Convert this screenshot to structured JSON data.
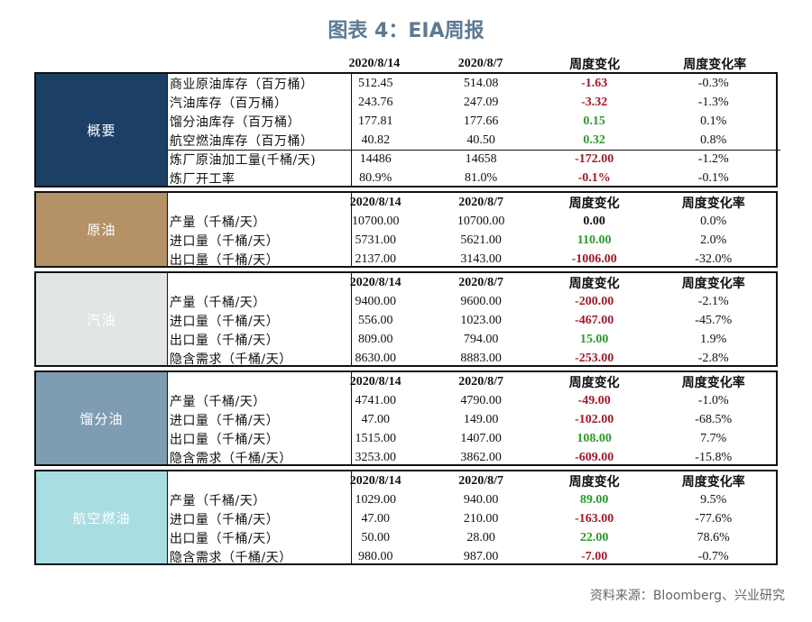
{
  "title": "图表 4：EIA周报",
  "header": {
    "d1": "2020/8/14",
    "d2": "2020/8/7",
    "chg": "周度变化",
    "pct": "周度变化率"
  },
  "colors": {
    "overview": "#1c3f66",
    "crude": "#b49265",
    "gasoline": "#e2e5e6",
    "distillate": "#7f9db2",
    "jet": "#a8dde1"
  },
  "sections": [
    {
      "name": "概要",
      "rows": [
        {
          "item": "商业原油库存（百万桶）",
          "v1": "512.45",
          "v2": "514.08",
          "chg": "-1.63",
          "pct": "-0.3%",
          "tone": "neg"
        },
        {
          "item": "汽油库存（百万桶）",
          "v1": "243.76",
          "v2": "247.09",
          "chg": "-3.32",
          "pct": "-1.3%",
          "tone": "neg"
        },
        {
          "item": "馏分油库存（百万桶）",
          "v1": "177.81",
          "v2": "177.66",
          "chg": "0.15",
          "pct": "0.1%",
          "tone": "pos"
        },
        {
          "item": "航空燃油库存（百万桶）",
          "v1": "40.82",
          "v2": "40.50",
          "chg": "0.32",
          "pct": "0.8%",
          "tone": "pos"
        },
        {
          "item": "炼厂原油加工量(千桶/天)",
          "v1": "14486",
          "v2": "14658",
          "chg": "-172.00",
          "pct": "-1.2%",
          "tone": "neg"
        },
        {
          "item": "炼厂开工率",
          "v1": "80.9%",
          "v2": "81.0%",
          "chg": "-0.1%",
          "pct": "-0.1%",
          "tone": "neg"
        }
      ]
    },
    {
      "name": "原油",
      "rows": [
        {
          "item": "产量（千桶/天）",
          "v1": "10700.00",
          "v2": "10700.00",
          "chg": "0.00",
          "pct": "0.0%",
          "tone": "zero"
        },
        {
          "item": "进口量（千桶/天）",
          "v1": "5731.00",
          "v2": "5621.00",
          "chg": "110.00",
          "pct": "2.0%",
          "tone": "pos"
        },
        {
          "item": "出口量（千桶/天）",
          "v1": "2137.00",
          "v2": "3143.00",
          "chg": "-1006.00",
          "pct": "-32.0%",
          "tone": "neg"
        }
      ]
    },
    {
      "name": "汽油",
      "rows": [
        {
          "item": "产量（千桶/天）",
          "v1": "9400.00",
          "v2": "9600.00",
          "chg": "-200.00",
          "pct": "-2.1%",
          "tone": "neg"
        },
        {
          "item": "进口量（千桶/天）",
          "v1": "556.00",
          "v2": "1023.00",
          "chg": "-467.00",
          "pct": "-45.7%",
          "tone": "neg"
        },
        {
          "item": "出口量（千桶/天）",
          "v1": "809.00",
          "v2": "794.00",
          "chg": "15.00",
          "pct": "1.9%",
          "tone": "pos"
        },
        {
          "item": "隐含需求（千桶/天）",
          "v1": "8630.00",
          "v2": "8883.00",
          "chg": "-253.00",
          "pct": "-2.8%",
          "tone": "neg"
        }
      ]
    },
    {
      "name": "馏分油",
      "rows": [
        {
          "item": "产量（千桶/天）",
          "v1": "4741.00",
          "v2": "4790.00",
          "chg": "-49.00",
          "pct": "-1.0%",
          "tone": "neg"
        },
        {
          "item": "进口量（千桶/天）",
          "v1": "47.00",
          "v2": "149.00",
          "chg": "-102.00",
          "pct": "-68.5%",
          "tone": "neg"
        },
        {
          "item": "出口量（千桶/天）",
          "v1": "1515.00",
          "v2": "1407.00",
          "chg": "108.00",
          "pct": "7.7%",
          "tone": "pos"
        },
        {
          "item": "隐含需求（千桶/天）",
          "v1": "3253.00",
          "v2": "3862.00",
          "chg": "-609.00",
          "pct": "-15.8%",
          "tone": "neg"
        }
      ]
    },
    {
      "name": "航空燃油",
      "rows": [
        {
          "item": "产量（千桶/天）",
          "v1": "1029.00",
          "v2": "940.00",
          "chg": "89.00",
          "pct": "9.5%",
          "tone": "pos"
        },
        {
          "item": "进口量（千桶/天）",
          "v1": "47.00",
          "v2": "210.00",
          "chg": "-163.00",
          "pct": "-77.6%",
          "tone": "neg"
        },
        {
          "item": "出口量（千桶/天）",
          "v1": "50.00",
          "v2": "28.00",
          "chg": "22.00",
          "pct": "78.6%",
          "tone": "pos"
        },
        {
          "item": "隐含需求（千桶/天）",
          "v1": "980.00",
          "v2": "987.00",
          "chg": "-7.00",
          "pct": "-0.7%",
          "tone": "neg"
        }
      ]
    }
  ],
  "source": "资料来源：Bloomberg、兴业研究"
}
